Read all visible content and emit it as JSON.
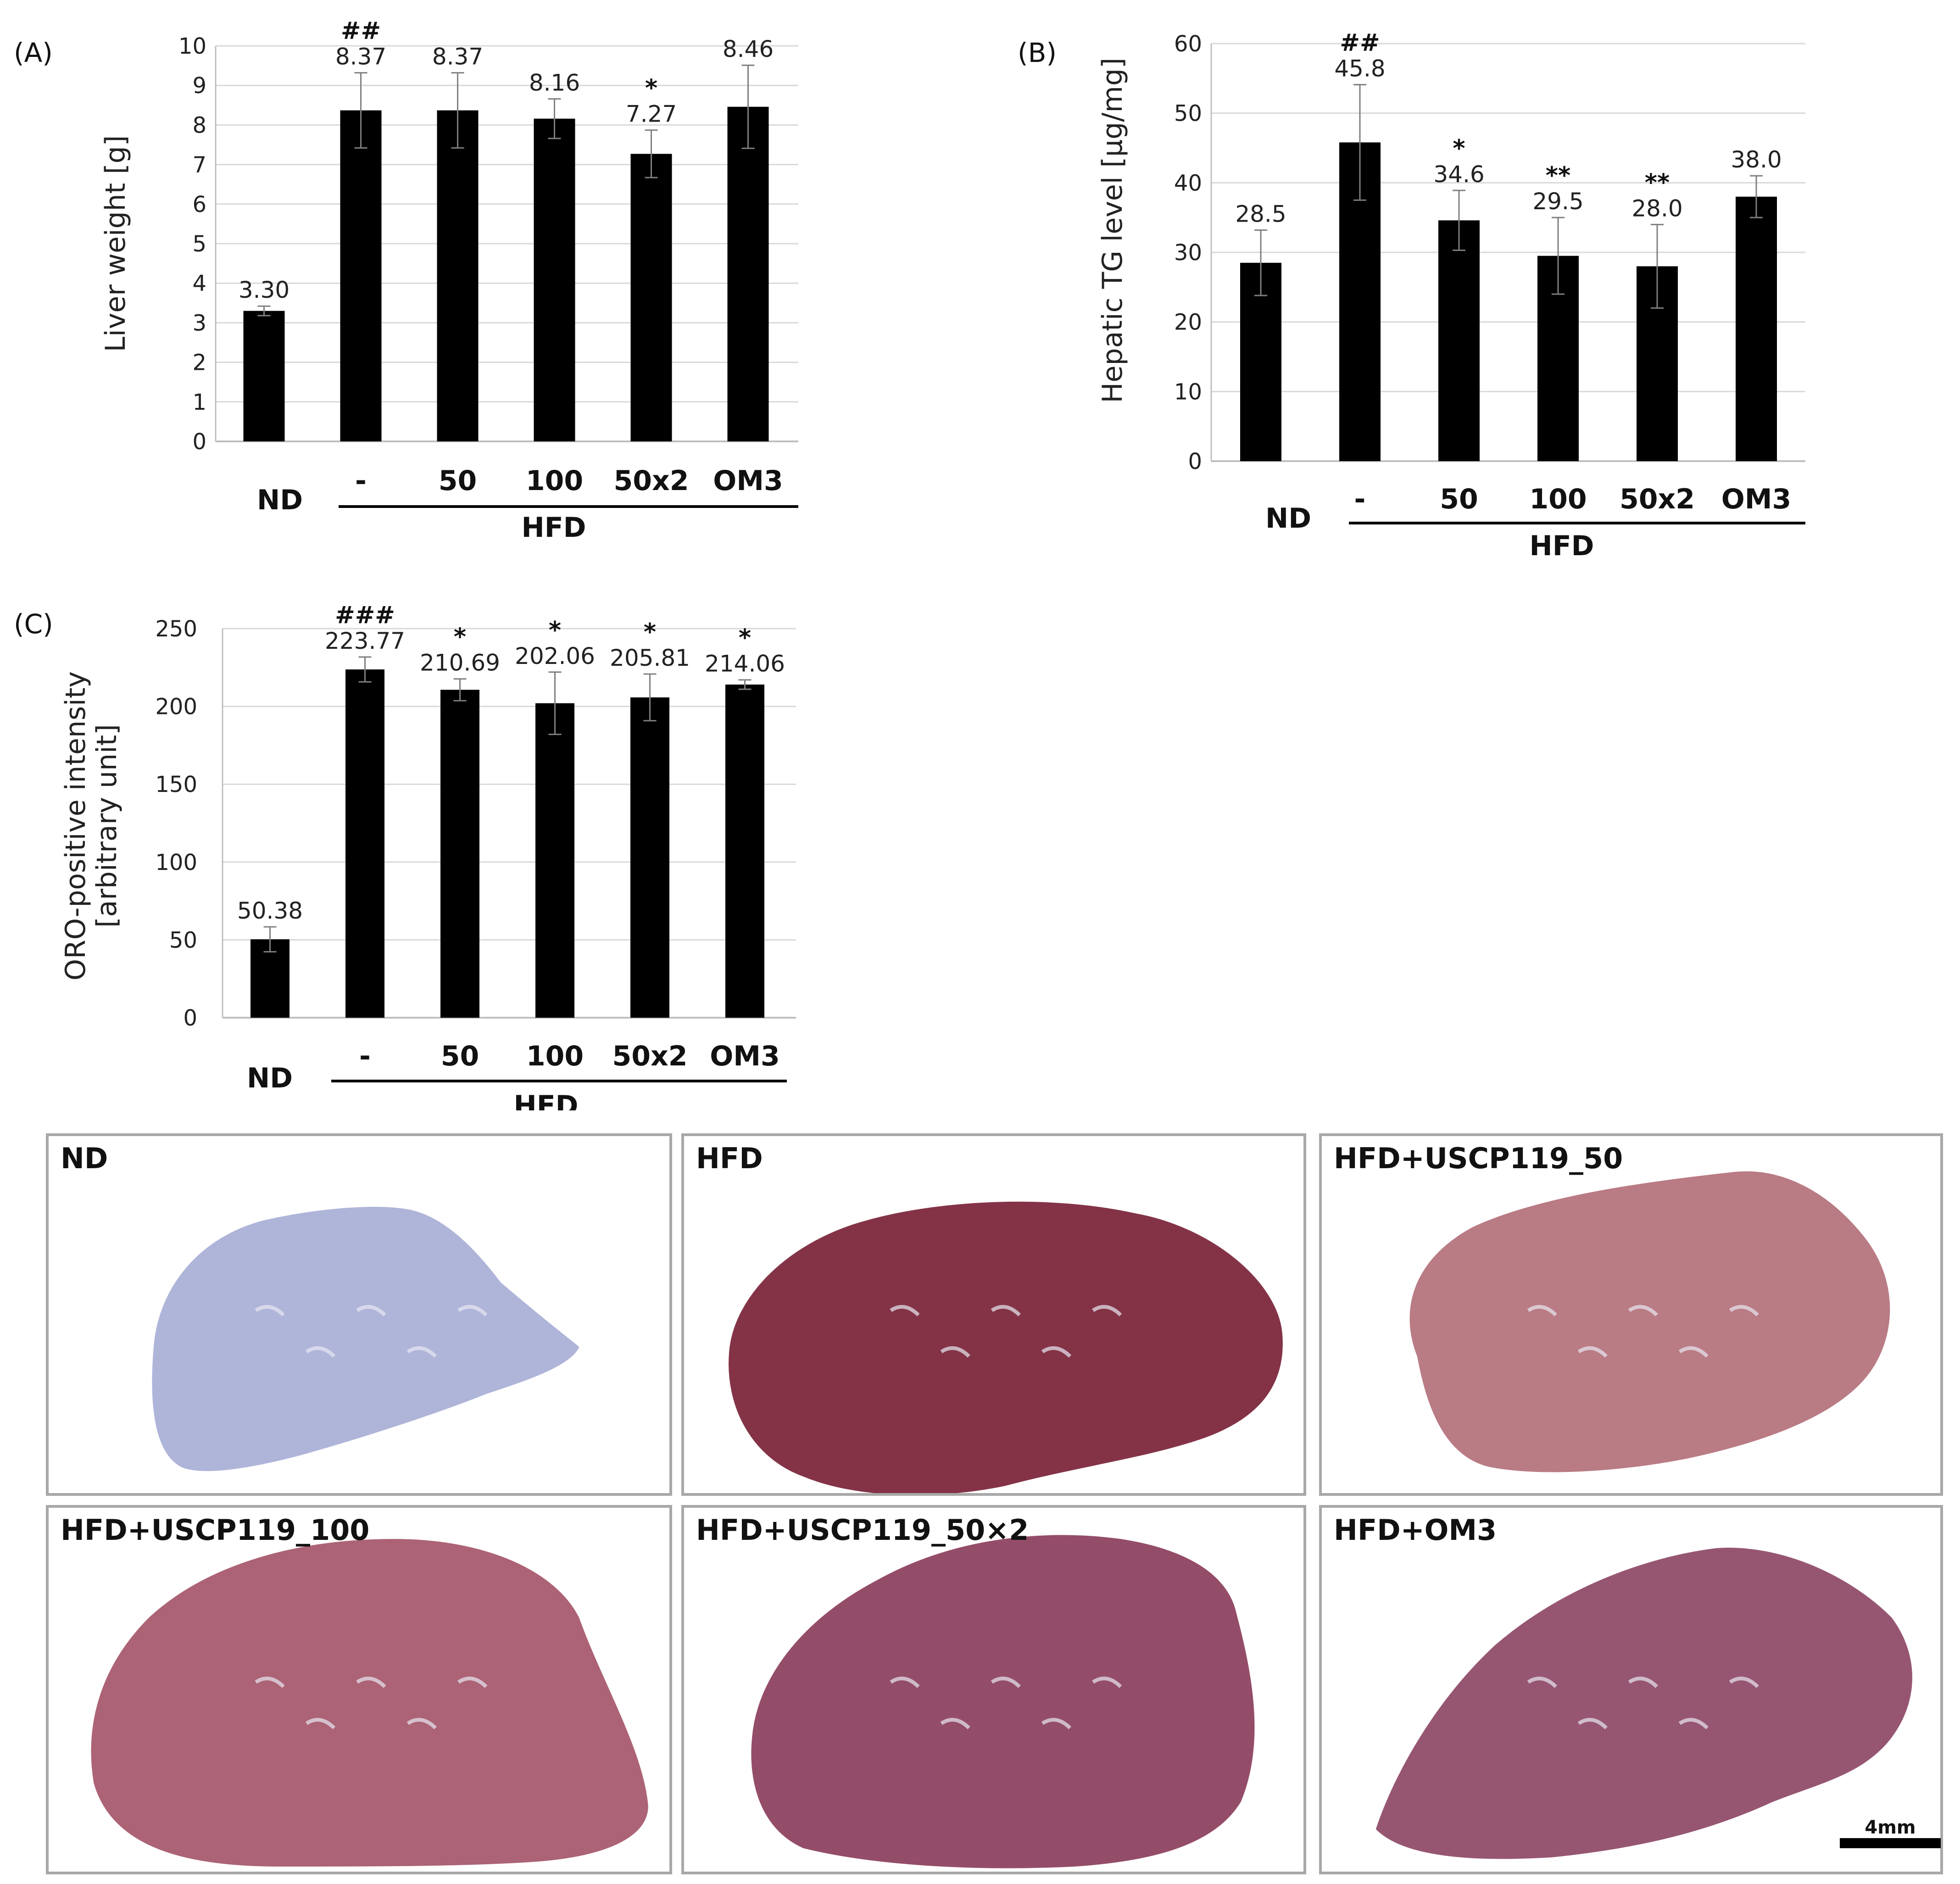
{
  "chart_data": [
    {
      "panel": "(A)",
      "type": "bar",
      "ylabel": "Liver weight [g]",
      "ylim": [
        0,
        10
      ],
      "yticks": [
        "0",
        "1",
        "2",
        "3",
        "4",
        "5",
        "6",
        "7",
        "8",
        "9",
        "10"
      ],
      "categories": [
        "ND",
        "-",
        "50",
        "100",
        "50x2",
        "OM3"
      ],
      "values": [
        3.3,
        8.37,
        8.37,
        8.16,
        7.27,
        8.46
      ],
      "value_labels": [
        "3.30",
        "8.37",
        "8.37",
        "8.16",
        "7.27",
        "8.46"
      ],
      "errors": [
        0.12,
        0.95,
        0.95,
        0.5,
        0.6,
        1.05
      ],
      "significance": [
        "",
        "##",
        "",
        "",
        "*",
        ""
      ],
      "group_label": "HFD"
    },
    {
      "panel": "(B)",
      "type": "bar",
      "ylabel": "Hepatic TG level [µg/mg]",
      "ylim": [
        0,
        60
      ],
      "yticks": [
        "0",
        "10",
        "20",
        "30",
        "40",
        "50",
        "60"
      ],
      "categories": [
        "ND",
        "-",
        "50",
        "100",
        "50x2",
        "OM3"
      ],
      "values": [
        28.5,
        45.8,
        34.6,
        29.5,
        28.0,
        38.0
      ],
      "value_labels": [
        "28.5",
        "45.8",
        "34.6",
        "29.5",
        "28.0",
        "38.0"
      ],
      "errors": [
        4.7,
        8.3,
        4.3,
        5.5,
        6.0,
        3.0
      ],
      "significance": [
        "",
        "##",
        "*",
        "**",
        "**",
        ""
      ],
      "group_label": "HFD"
    },
    {
      "panel": "(C)",
      "type": "bar",
      "ylabel_lines": [
        "ORO-positive intensity",
        "[arbitrary unit]"
      ],
      "ylim": [
        0,
        250
      ],
      "yticks": [
        "0",
        "50",
        "100",
        "150",
        "200",
        "250"
      ],
      "categories": [
        "ND",
        "-",
        "50",
        "100",
        "50x2",
        "OM3"
      ],
      "values": [
        50.38,
        223.77,
        210.69,
        202.06,
        205.81,
        214.06
      ],
      "value_labels": [
        "50.38",
        "223.77",
        "210.69",
        "202.06",
        "205.81",
        "214.06"
      ],
      "errors": [
        8,
        8,
        7,
        20,
        15,
        3
      ],
      "significance": [
        "",
        "###",
        "*",
        "*",
        "*",
        "*"
      ],
      "group_label": "HFD"
    }
  ],
  "histology": {
    "panels": [
      {
        "title": "ND",
        "color": "#a9aed6"
      },
      {
        "title": "HFD",
        "color": "#7a2238"
      },
      {
        "title": "HFD+USCP119_50",
        "color": "#b4707a"
      },
      {
        "title": "HFD+USCP119_100",
        "color": "#a5566a"
      },
      {
        "title": "HFD+USCP119_50×2",
        "color": "#8c3e5c"
      },
      {
        "title": "HFD+OM3",
        "color": "#8e4866"
      }
    ],
    "scale_bar_label": "4mm"
  }
}
